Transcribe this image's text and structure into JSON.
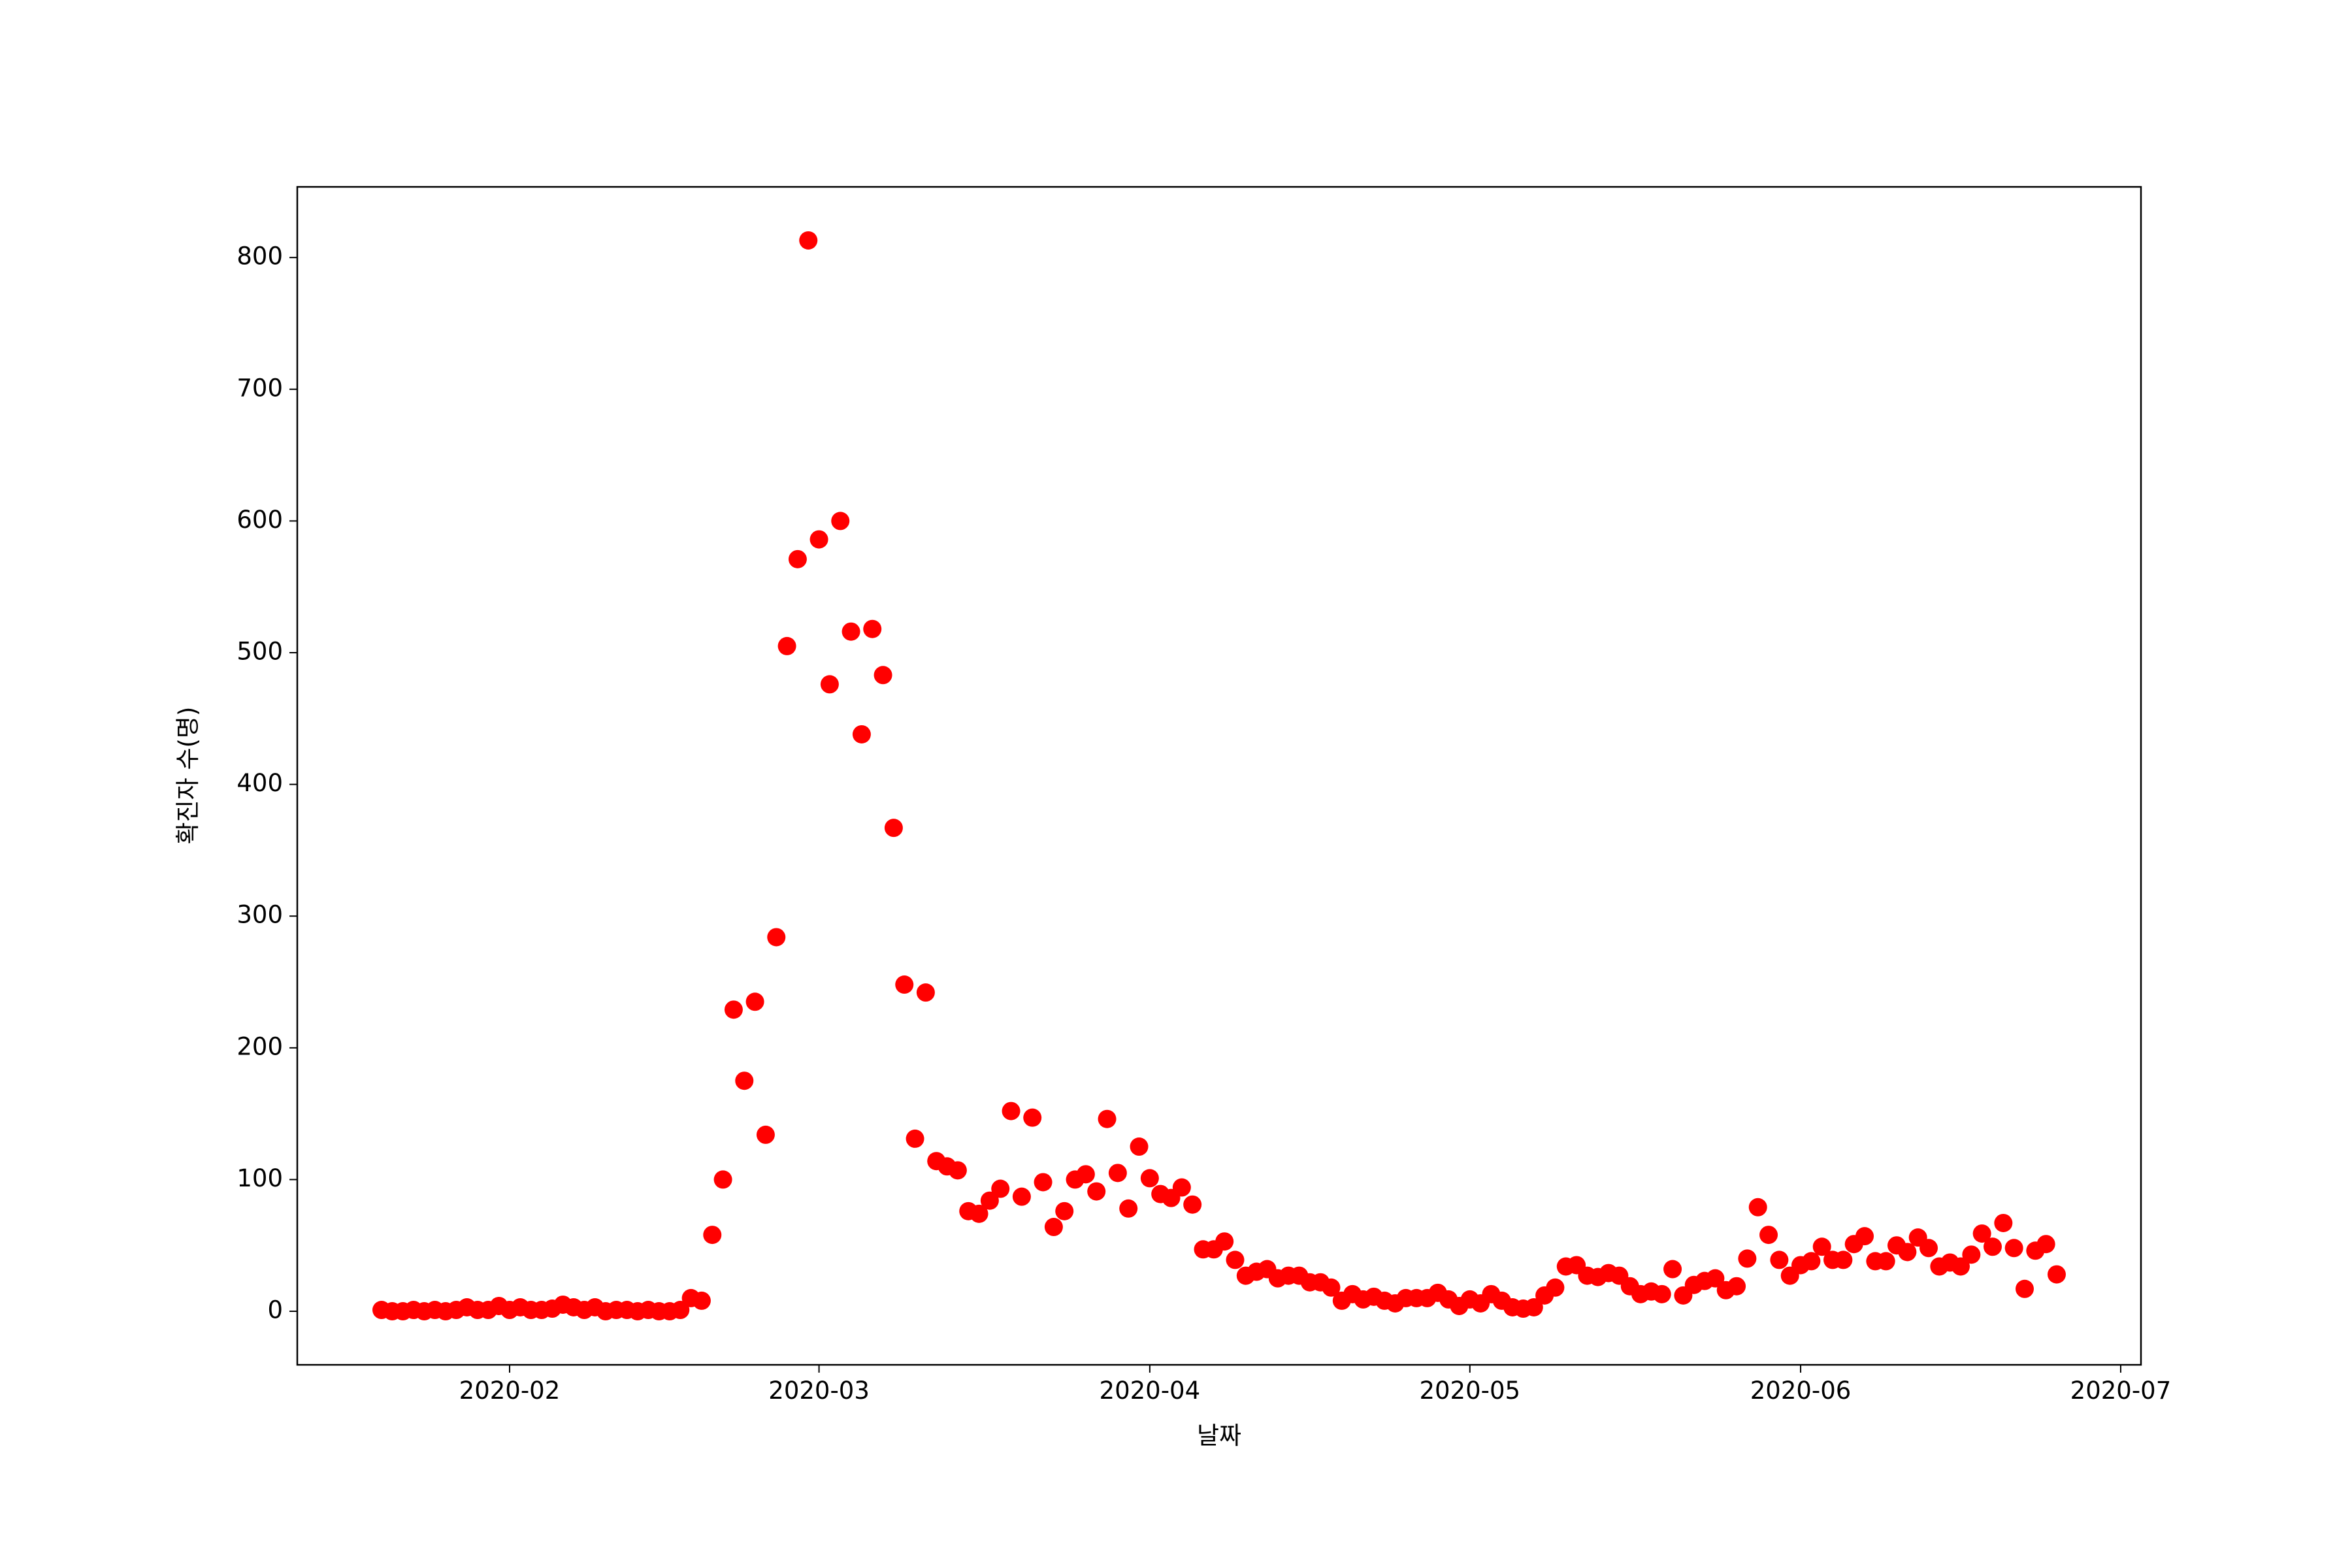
{
  "chart_data": {
    "type": "scatter",
    "xlabel": "날짜",
    "ylabel": "확진자 수(명)",
    "color": "#ff0000",
    "x": [
      18281,
      18282,
      18283,
      18284,
      18285,
      18286,
      18287,
      18288,
      18289,
      18290,
      18291,
      18292,
      18293,
      18294,
      18295,
      18296,
      18297,
      18298,
      18299,
      18300,
      18301,
      18302,
      18303,
      18304,
      18305,
      18306,
      18307,
      18308,
      18309,
      18310,
      18311,
      18312,
      18313,
      18314,
      18315,
      18316,
      18317,
      18318,
      18319,
      18320,
      18321,
      18322,
      18323,
      18324,
      18325,
      18326,
      18327,
      18328,
      18329,
      18330,
      18331,
      18332,
      18333,
      18334,
      18335,
      18336,
      18337,
      18338,
      18339,
      18340,
      18341,
      18342,
      18343,
      18344,
      18345,
      18346,
      18347,
      18348,
      18349,
      18350,
      18351,
      18352,
      18353,
      18354,
      18355,
      18356,
      18357,
      18358,
      18359,
      18360,
      18361,
      18362,
      18363,
      18364,
      18365,
      18366,
      18367,
      18368,
      18369,
      18370,
      18371,
      18372,
      18373,
      18374,
      18375,
      18376,
      18377,
      18378,
      18379,
      18380,
      18381,
      18382,
      18383,
      18384,
      18385,
      18386,
      18387,
      18388,
      18389,
      18390,
      18391,
      18392,
      18393,
      18394,
      18395,
      18396,
      18397,
      18398,
      18399,
      18400,
      18401,
      18402,
      18403,
      18404,
      18405,
      18406,
      18407,
      18408,
      18409,
      18410,
      18411,
      18412,
      18413,
      18414,
      18415,
      18416,
      18417,
      18418,
      18419,
      18420,
      18421,
      18422,
      18423,
      18424,
      18425,
      18426,
      18427,
      18428,
      18429,
      18430,
      18431,
      18432,
      18433,
      18434,
      18435,
      18436,
      18437,
      18438
    ],
    "values": [
      1,
      0,
      0,
      1,
      0,
      1,
      0,
      1,
      3,
      1,
      1,
      4,
      1,
      3,
      1,
      1,
      2,
      5,
      3,
      1,
      3,
      0,
      1,
      1,
      0,
      1,
      0,
      0,
      1,
      10,
      8,
      58,
      100,
      229,
      175,
      235,
      134,
      284,
      505,
      571,
      813,
      586,
      476,
      600,
      516,
      438,
      518,
      483,
      367,
      248,
      131,
      242,
      114,
      110,
      107,
      76,
      74,
      84,
      93,
      152,
      87,
      147,
      98,
      64,
      76,
      100,
      104,
      91,
      146,
      105,
      78,
      125,
      101,
      89,
      86,
      94,
      81,
      47,
      47,
      53,
      39,
      27,
      30,
      32,
      25,
      27,
      27,
      22,
      22,
      18,
      8,
      13,
      9,
      11,
      8,
      6,
      10,
      10,
      10,
      14,
      9,
      4,
      9,
      6,
      13,
      8,
      3,
      2,
      3,
      12,
      18,
      34,
      35,
      27,
      26,
      29,
      27,
      19,
      13,
      15,
      13,
      32,
      12,
      20,
      23,
      25,
      16,
      19,
      40,
      79,
      58,
      39,
      27,
      35,
      38,
      49,
      39,
      39,
      51,
      57,
      38,
      38,
      50,
      45,
      56,
      48,
      34,
      37,
      34,
      43,
      59,
      49,
      67,
      48,
      17,
      46,
      51,
      28
    ],
    "xlim": [
      18273.1,
      18445.9
    ],
    "ylim": [
      -40.65,
      853.65
    ],
    "xticks": [
      {
        "value": 18293,
        "label": "2020-02"
      },
      {
        "value": 18322,
        "label": "2020-03"
      },
      {
        "value": 18353,
        "label": "2020-04"
      },
      {
        "value": 18383,
        "label": "2020-05"
      },
      {
        "value": 18414,
        "label": "2020-06"
      },
      {
        "value": 18444,
        "label": "2020-07"
      }
    ],
    "yticks": [
      0,
      100,
      200,
      300,
      400,
      500,
      600,
      700,
      800
    ]
  }
}
